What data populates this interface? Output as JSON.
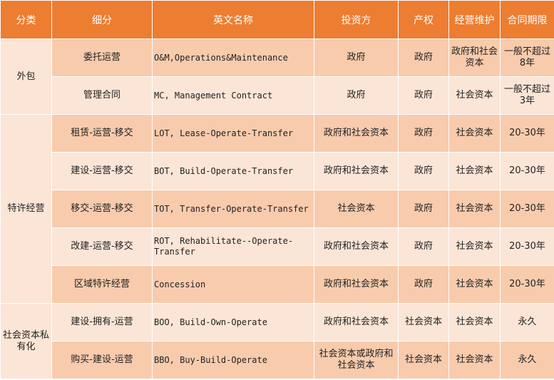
{
  "headers": [
    "分类",
    "细分",
    "英文名称",
    "投资方",
    "产权",
    "经营维护",
    "合同期限"
  ],
  "rows": [
    {
      "category": "外包",
      "sub": "委托运营",
      "english": "O&M,Operations&Maintenance",
      "investor": "政府",
      "ownership": "政府",
      "maintenance": "政府和社会资本",
      "term": "一般不超过8年"
    },
    {
      "sub": "管理合同",
      "english": "MC, Management Contract",
      "investor": "政府",
      "ownership": "政府",
      "maintenance": "社会资本",
      "term": "一般不超过3年"
    },
    {
      "category": "特许经营",
      "sub": "租赁-运营-移交",
      "english": "LOT, Lease-Operate-Transfer",
      "investor": "政府和社会资本",
      "ownership": "政府",
      "maintenance": "社会资本",
      "term": "20-30年"
    },
    {
      "sub": "建设-运营-移交",
      "english": "BOT, Build-Operate-Transfer",
      "investor": "政府和社会资本",
      "ownership": "政府",
      "maintenance": "社会资本",
      "term": "20-30年"
    },
    {
      "sub": "移交-运营-移交",
      "english": "TOT, Transfer-Operate-Transfer",
      "investor": "社会资本",
      "ownership": "政府",
      "maintenance": "社会资本",
      "term": "20-30年"
    },
    {
      "sub": "改建-运营-移交",
      "english": "ROT, Rehabilitate--Operate-Transfer",
      "investor": "政府和社会资本",
      "ownership": "政府",
      "maintenance": "社会资本",
      "term": "20-30年"
    },
    {
      "sub": "区域特许经营",
      "english": "Concession",
      "investor": "政府和社会资本",
      "ownership": "政府",
      "maintenance": "社会资本",
      "term": "20-30年"
    },
    {
      "category": "社会资本私有化",
      "sub": "建设-拥有-运营",
      "english": "BOO, Build-Own-Operate",
      "investor": "政府和社会资本",
      "ownership": "社会资本",
      "maintenance": "社会资本",
      "term": "永久"
    },
    {
      "sub": "购买-建设-运营",
      "english": "BBO, Buy-Build-Operate",
      "investor": "社会资本或政府和社会资本",
      "ownership": "社会资本",
      "maintenance": "社会资本",
      "term": "永久"
    }
  ],
  "colors": {
    "header_bg": "#ED7D31",
    "row_dark": "#F8CBAD",
    "row_light": "#FBE5D6"
  }
}
